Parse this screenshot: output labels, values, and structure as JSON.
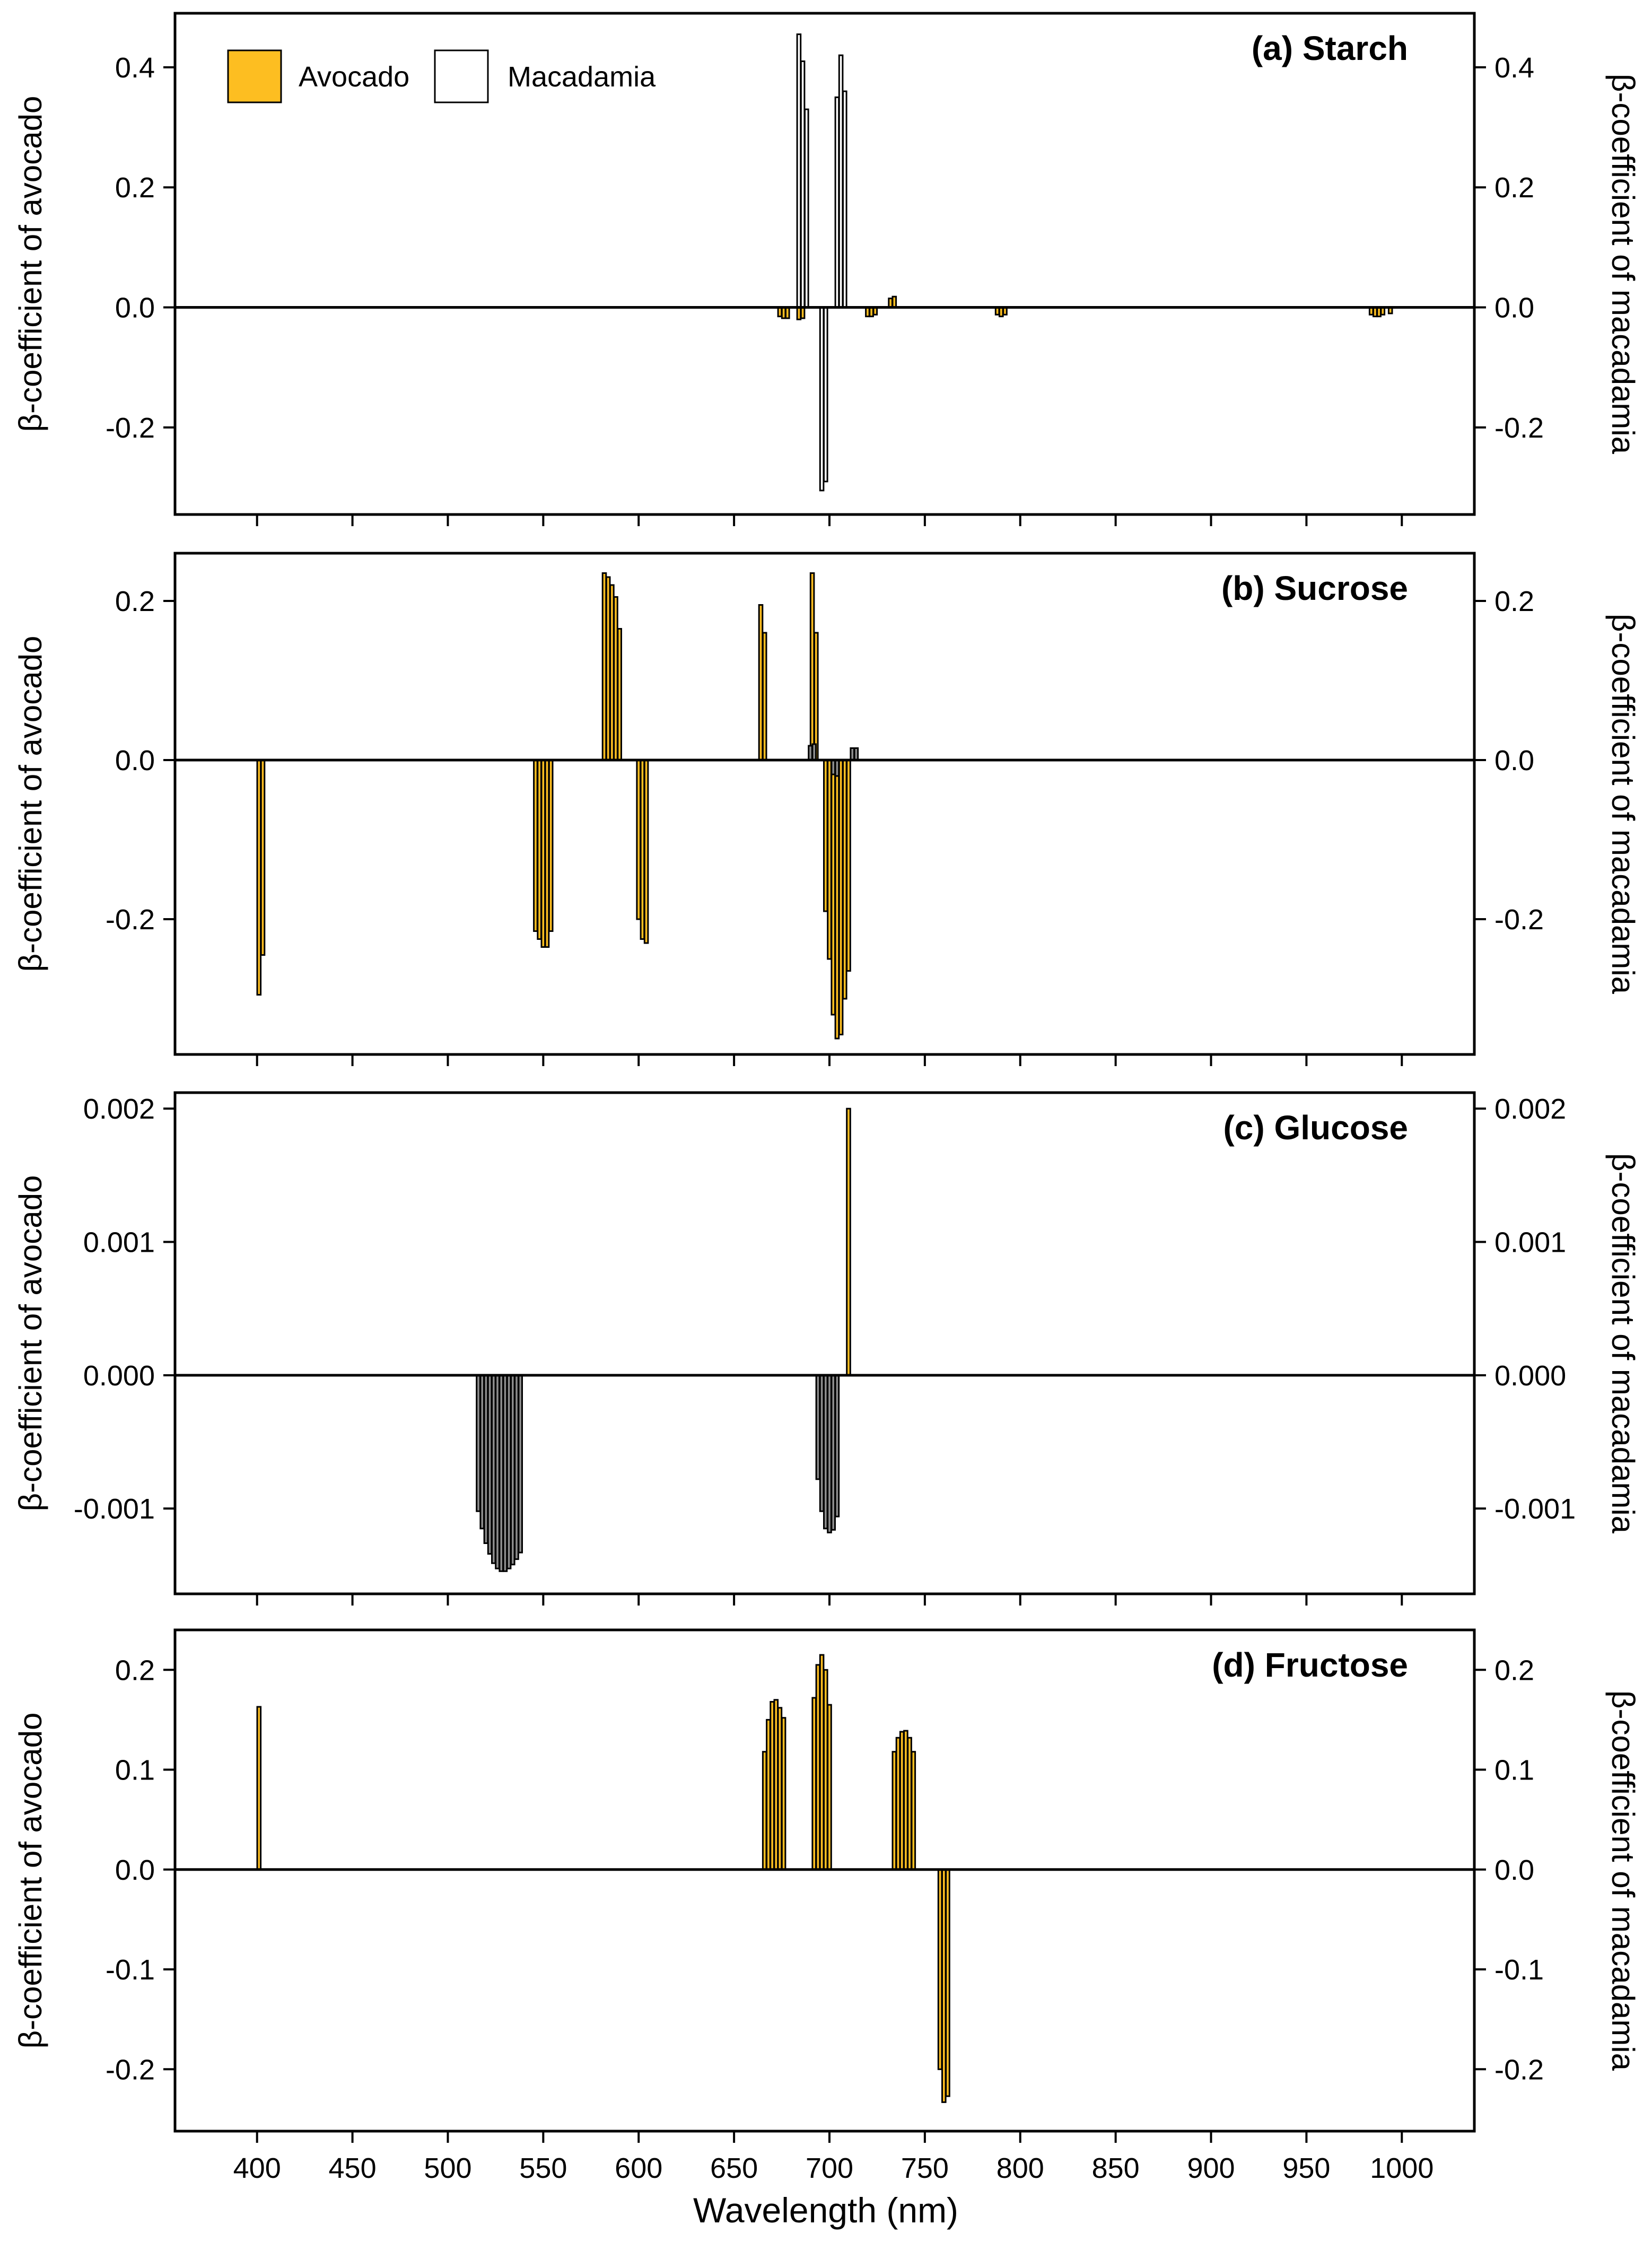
{
  "figure": {
    "xlabel": "Wavelength (nm)",
    "left_ylabel": "β-coefficient of avocado",
    "right_ylabel": "β-coefficient of macadamia",
    "legend": [
      {
        "label": "Avocado",
        "color": "#FDBE21"
      },
      {
        "label": "Macadamia",
        "color": "#FFFFFF"
      }
    ],
    "colors": {
      "avocado": "#FDBE21",
      "macadamia": "#FFFFFF",
      "macadamia_dark": "#8C8C8C",
      "axis": "#000000"
    }
  },
  "chart_data": [
    {
      "type": "bar",
      "title": "(a) Starch",
      "xlabel": "",
      "ylabel": "β-coefficient of avocado",
      "y2label": "β-coefficient of macadamia",
      "xlim": [
        357,
        1038
      ],
      "ylim": [
        -0.345,
        0.49
      ],
      "yticks": [
        0.4,
        0.2,
        0.0,
        -0.2
      ],
      "ytick_labels": [
        "0.4",
        "0.2",
        "0.0",
        "-0.2"
      ],
      "series": [
        {
          "name": "Avocado",
          "style": "avocado",
          "x": [
            674,
            676,
            678,
            684,
            686,
            720,
            722,
            724,
            732,
            734,
            788,
            790,
            792,
            984,
            986,
            988,
            990,
            994
          ],
          "values": [
            -0.015,
            -0.018,
            -0.018,
            -0.02,
            -0.018,
            -0.015,
            -0.015,
            -0.012,
            0.015,
            0.018,
            -0.012,
            -0.015,
            -0.012,
            -0.012,
            -0.015,
            -0.015,
            -0.012,
            -0.01
          ]
        },
        {
          "name": "Macadamia",
          "style": "macadamia",
          "x": [
            684,
            686,
            688,
            696,
            698,
            704,
            706,
            708
          ],
          "values": [
            0.455,
            0.41,
            0.33,
            -0.305,
            -0.29,
            0.35,
            0.42,
            0.36
          ]
        }
      ]
    },
    {
      "type": "bar",
      "title": "(b) Sucrose",
      "xlabel": "",
      "ylabel": "β-coefficient of avocado",
      "y2label": "β-coefficient of macadamia",
      "xlim": [
        357,
        1038
      ],
      "ylim": [
        -0.37,
        0.26
      ],
      "yticks": [
        0.2,
        0.0,
        -0.2
      ],
      "ytick_labels": [
        "0.2",
        "0.0",
        "-0.2"
      ],
      "series": [
        {
          "name": "Avocado",
          "style": "avocado",
          "x": [
            401,
            403,
            546,
            548,
            550,
            552,
            554,
            582,
            584,
            586,
            588,
            590,
            600,
            602,
            604,
            664,
            666,
            691,
            693,
            698,
            700,
            702,
            704,
            706,
            708,
            710
          ],
          "values": [
            -0.295,
            -0.245,
            -0.215,
            -0.225,
            -0.235,
            -0.235,
            -0.215,
            0.235,
            0.23,
            0.22,
            0.205,
            0.165,
            -0.2,
            -0.225,
            -0.23,
            0.195,
            0.16,
            0.235,
            0.16,
            -0.19,
            -0.25,
            -0.32,
            -0.35,
            -0.345,
            -0.3,
            -0.265
          ]
        },
        {
          "name": "Macadamia",
          "style": "macadamia_dark",
          "x": [
            690,
            692,
            702,
            704,
            712,
            714
          ],
          "values": [
            0.018,
            0.02,
            -0.018,
            -0.02,
            0.015,
            0.015
          ]
        }
      ]
    },
    {
      "type": "bar",
      "title": "(c) Glucose",
      "xlabel": "",
      "ylabel": "β-coefficient of avocado",
      "y2label": "β-coefficient of macadamia",
      "xlim": [
        357,
        1038
      ],
      "ylim": [
        -0.00164,
        0.00212
      ],
      "yticks": [
        0.002,
        0.001,
        0.0,
        -0.001
      ],
      "ytick_labels": [
        "0.002",
        "0.001",
        "0.000",
        "-0.001"
      ],
      "series": [
        {
          "name": "Avocado",
          "style": "avocado",
          "x": [
            710
          ],
          "values": [
            0.002
          ]
        },
        {
          "name": "Macadamia",
          "style": "macadamia_dark",
          "x": [
            516,
            518,
            520,
            522,
            524,
            526,
            528,
            530,
            532,
            534,
            536,
            538,
            694,
            696,
            698,
            700,
            702,
            704
          ],
          "values": [
            -0.00102,
            -0.00115,
            -0.00126,
            -0.00134,
            -0.00141,
            -0.00145,
            -0.00147,
            -0.00147,
            -0.00145,
            -0.00142,
            -0.00138,
            -0.00133,
            -0.00078,
            -0.00102,
            -0.00115,
            -0.00118,
            -0.00116,
            -0.00106
          ]
        }
      ]
    },
    {
      "type": "bar",
      "title": "(d) Fructose",
      "xlabel": "Wavelength (nm)",
      "ylabel": "β-coefficient of avocado",
      "y2label": "β-coefficient of macadamia",
      "xlim": [
        357,
        1038
      ],
      "ylim": [
        -0.262,
        0.24
      ],
      "yticks": [
        0.2,
        0.1,
        0.0,
        -0.1,
        -0.2
      ],
      "ytick_labels": [
        "0.2",
        "0.1",
        "0.0",
        "-0.1",
        "-0.2"
      ],
      "xticks": [
        400,
        450,
        500,
        550,
        600,
        650,
        700,
        750,
        800,
        850,
        900,
        950,
        1000
      ],
      "xtick_labels": [
        "400",
        "450",
        "500",
        "550",
        "600",
        "650",
        "700",
        "750",
        "800",
        "850",
        "900",
        "950",
        "1000"
      ],
      "series": [
        {
          "name": "Avocado",
          "style": "avocado",
          "x": [
            401,
            666,
            668,
            670,
            672,
            674,
            676,
            692,
            694,
            696,
            698,
            700,
            734,
            736,
            738,
            740,
            742,
            744,
            758,
            760,
            762
          ],
          "values": [
            0.163,
            0.118,
            0.15,
            0.168,
            0.17,
            0.162,
            0.152,
            0.172,
            0.205,
            0.215,
            0.2,
            0.165,
            0.118,
            0.132,
            0.138,
            0.139,
            0.132,
            0.118,
            -0.2,
            -0.233,
            -0.227
          ]
        }
      ]
    }
  ]
}
